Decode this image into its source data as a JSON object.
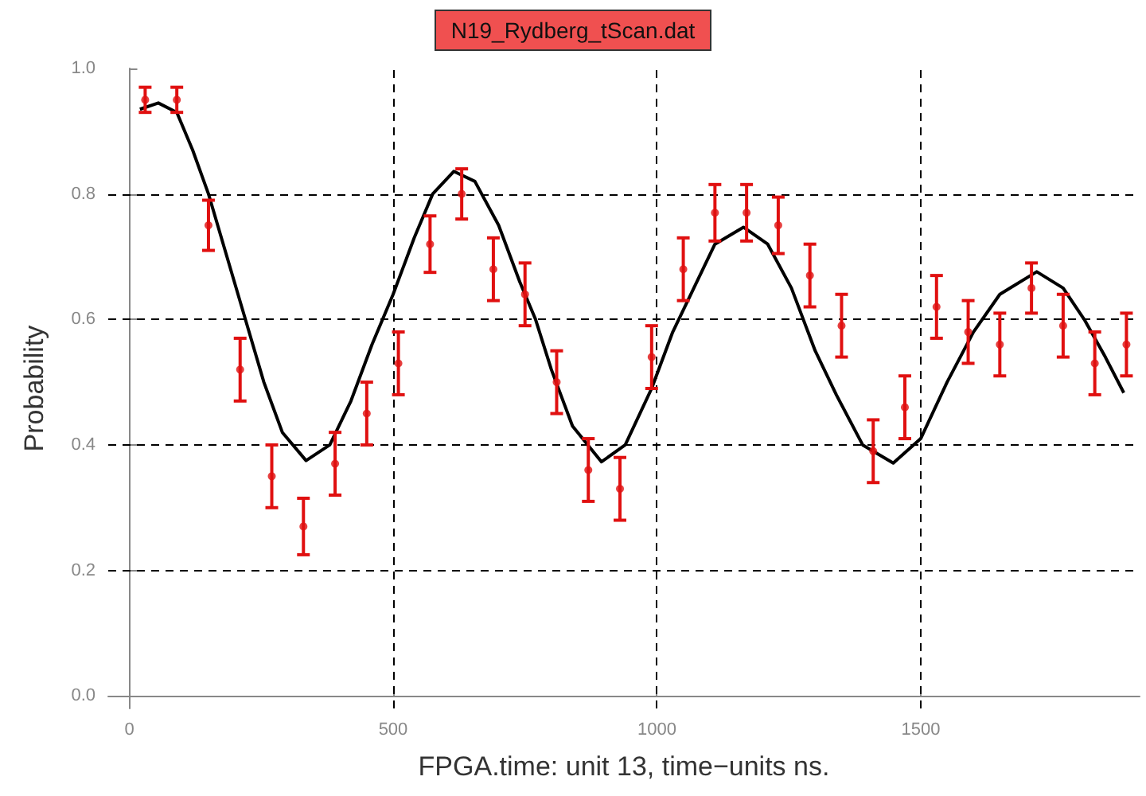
{
  "chart_data": {
    "type": "scatter",
    "title": "N19_Rydberg_tScan.dat",
    "xlabel": "FPGA.time: unit 13, time−units ns.",
    "ylabel": "Probability",
    "xlim": [
      -40,
      1915
    ],
    "xticks": [
      0,
      500,
      1000,
      1500
    ],
    "ylim": [
      -0.02,
      1.0
    ],
    "yticks": [
      {
        "value": 0,
        "label": "0.0"
      },
      0.2,
      0.4,
      0.6,
      0.8,
      {
        "value": 1,
        "label": "1.0"
      }
    ],
    "grid": true,
    "series": [
      {
        "color": "#e01010",
        "marker": "circle",
        "x": [
          30,
          90,
          150,
          210,
          270,
          330,
          390,
          450,
          510,
          570,
          630,
          690,
          750,
          810,
          870,
          930,
          990,
          1050,
          1110,
          1170,
          1230,
          1290,
          1350,
          1410,
          1470,
          1530,
          1590,
          1650,
          1710,
          1770,
          1830,
          1890
        ],
        "values": [
          0.95,
          0.95,
          0.75,
          0.52,
          0.35,
          0.27,
          0.37,
          0.45,
          0.53,
          0.72,
          0.8,
          0.68,
          0.64,
          0.5,
          0.36,
          0.33,
          0.54,
          0.68,
          0.77,
          0.77,
          0.75,
          0.67,
          0.59,
          0.39,
          0.46,
          0.62,
          0.58,
          0.56,
          0.65,
          0.59,
          0.53,
          0.56
        ],
        "errors": [
          0.02,
          0.02,
          0.04,
          0.05,
          0.05,
          0.045,
          0.05,
          0.05,
          0.05,
          0.045,
          0.04,
          0.05,
          0.05,
          0.05,
          0.05,
          0.05,
          0.05,
          0.05,
          0.045,
          0.045,
          0.045,
          0.05,
          0.05,
          0.05,
          0.05,
          0.05,
          0.05,
          0.05,
          0.04,
          0.05,
          0.05,
          0.05
        ]
      },
      {
        "type": "line",
        "color": "#000000",
        "marker": "none",
        "line_style": "solid",
        "x": [
          20,
          55,
          90,
          120,
          150,
          185,
          220,
          255,
          290,
          335,
          380,
          420,
          460,
          500,
          540,
          575,
          615,
          655,
          700,
          740,
          770,
          800,
          840,
          895,
          940,
          990,
          1030,
          1070,
          1110,
          1164,
          1210,
          1255,
          1300,
          1340,
          1390,
          1448,
          1500,
          1550,
          1600,
          1650,
          1720,
          1770,
          1810,
          1850,
          1885
        ],
        "values": [
          0.935,
          0.945,
          0.93,
          0.87,
          0.8,
          0.7,
          0.6,
          0.5,
          0.42,
          0.375,
          0.4,
          0.47,
          0.56,
          0.64,
          0.73,
          0.8,
          0.836,
          0.82,
          0.75,
          0.66,
          0.6,
          0.52,
          0.43,
          0.373,
          0.4,
          0.49,
          0.58,
          0.65,
          0.72,
          0.747,
          0.72,
          0.65,
          0.55,
          0.48,
          0.4,
          0.371,
          0.41,
          0.5,
          0.58,
          0.64,
          0.676,
          0.65,
          0.6,
          0.54,
          0.483
        ]
      }
    ]
  }
}
